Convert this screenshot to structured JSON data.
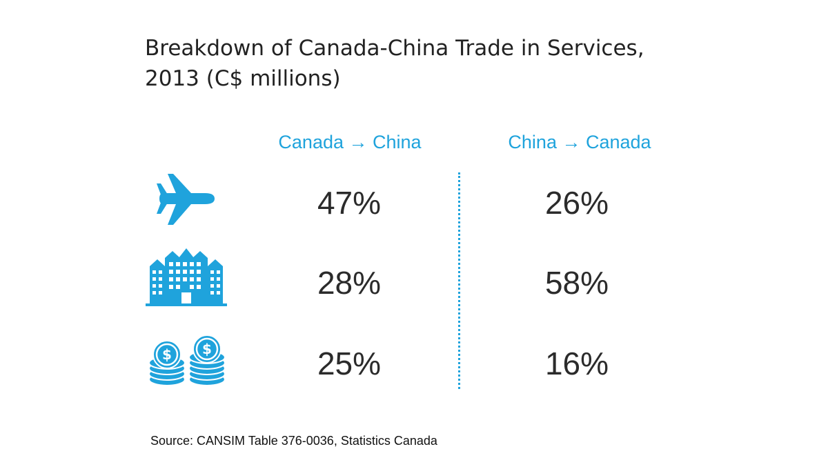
{
  "chart_data": {
    "type": "table",
    "title": "Breakdown of Canada-China Trade in Services,",
    "subtitle": "2013 (C$ millions)",
    "columns": [
      "Canada → China",
      "China → Canada"
    ],
    "rows": [
      {
        "icon": "airplane-icon",
        "values": [
          "47%",
          "26%"
        ]
      },
      {
        "icon": "buildings-icon",
        "values": [
          "28%",
          "58%"
        ]
      },
      {
        "icon": "coin-stacks-icon",
        "values": [
          "25%",
          "16%"
        ]
      }
    ],
    "source": "Source: CANSIM Table 376-0036, Statistics Canada"
  },
  "colors": {
    "accent": "#1fa3dc",
    "text": "#2b2b2b"
  }
}
